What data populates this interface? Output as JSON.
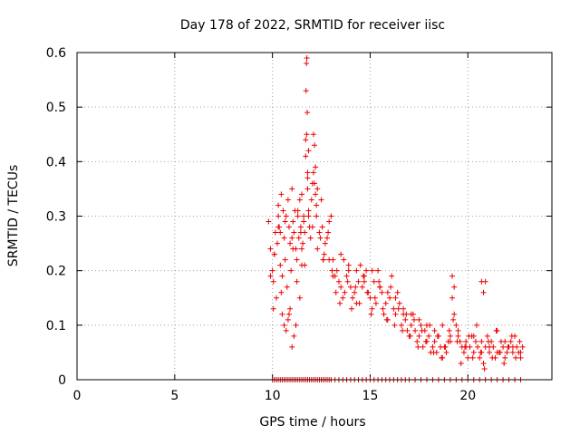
{
  "chart_data": {
    "type": "scatter",
    "title": "Day 178 of 2022, SRMTID for receiver iisc",
    "xlabel": "GPS time / hours",
    "ylabel": "SRMTID / TECUs",
    "xlim": [
      0,
      24.3
    ],
    "ylim": [
      0,
      0.6
    ],
    "xticks": [
      0,
      5,
      10,
      15,
      20
    ],
    "xtick_labels": [
      "0",
      "5",
      "10",
      "15",
      "20"
    ],
    "yticks": [
      0,
      0.1,
      0.2,
      0.3,
      0.4,
      0.5,
      0.6
    ],
    "ytick_labels": [
      "0",
      "0.1",
      "0.2",
      "0.3",
      "0.4",
      "0.5",
      "0.6"
    ],
    "grid": true,
    "marker": "+",
    "color": "#ee0000",
    "series": [
      {
        "name": "SRMTID",
        "x": [
          9.8,
          9.9,
          10.0,
          10.05,
          10.1,
          10.15,
          10.2,
          10.3,
          10.35,
          10.4,
          10.45,
          10.5,
          10.55,
          10.6,
          10.65,
          10.7,
          10.75,
          10.8,
          10.85,
          10.9,
          10.95,
          11.0,
          11.05,
          11.1,
          11.15,
          11.2,
          11.25,
          11.3,
          11.35,
          11.4,
          11.45,
          11.5,
          11.55,
          11.6,
          11.65,
          11.7,
          11.72,
          11.74,
          11.76,
          11.78,
          11.8,
          11.85,
          11.9,
          11.95,
          12.0,
          12.05,
          12.1,
          12.15,
          12.2,
          12.25,
          12.3,
          12.4,
          12.5,
          12.55,
          12.6,
          12.7,
          12.8,
          12.9,
          13.0,
          13.1,
          13.2,
          13.3,
          13.4,
          13.5,
          13.6,
          13.7,
          13.8,
          13.9,
          14.0,
          14.1,
          14.2,
          14.3,
          14.4,
          14.5,
          14.6,
          14.7,
          14.8,
          14.9,
          15.0,
          15.1,
          15.2,
          15.3,
          15.4,
          15.5,
          15.6,
          15.7,
          15.8,
          15.9,
          16.0,
          16.1,
          16.2,
          16.3,
          16.4,
          16.5,
          16.6,
          16.7,
          16.8,
          16.9,
          17.0,
          17.1,
          17.2,
          17.3,
          17.4,
          17.5,
          17.6,
          17.7,
          17.8,
          17.9,
          18.0,
          18.1,
          18.2,
          18.3,
          18.4,
          18.5,
          18.6,
          18.7,
          18.8,
          18.9,
          19.0,
          19.1,
          19.2,
          19.3,
          19.4,
          19.5,
          19.6,
          19.7,
          19.8,
          19.9,
          20.0,
          20.1,
          20.2,
          20.3,
          20.4,
          20.5,
          20.6,
          20.7,
          20.8,
          20.9,
          21.0,
          21.1,
          21.2,
          21.3,
          21.4,
          21.5,
          21.6,
          21.7,
          21.8,
          21.9,
          22.0,
          22.1,
          22.2,
          22.3,
          22.4,
          22.5,
          22.6,
          22.7,
          22.8,
          10.0,
          10.1,
          10.2,
          10.3,
          10.4,
          10.5,
          10.6,
          10.7,
          10.8,
          10.9,
          11.0,
          11.1,
          11.2,
          11.3,
          11.4,
          11.5,
          11.6,
          11.7,
          11.8,
          11.9,
          12.0,
          12.1,
          12.2,
          12.3,
          12.4,
          12.5,
          12.6,
          12.7,
          12.8,
          12.9,
          13.0,
          13.2,
          13.4,
          13.6,
          13.8,
          14.0,
          14.2,
          14.4,
          14.6,
          14.8,
          15.0,
          15.2,
          15.4,
          15.6,
          15.8,
          16.0,
          16.2,
          16.4,
          16.6,
          16.8,
          17.0,
          17.3,
          17.6,
          17.9,
          18.2,
          18.5,
          18.8,
          19.1,
          19.4,
          19.7,
          20.0,
          20.3,
          20.6,
          20.9,
          21.2,
          21.5,
          21.8,
          22.1,
          22.4,
          22.7,
          10.05,
          10.25,
          10.45,
          10.65,
          10.85,
          11.05,
          11.25,
          11.45,
          11.65,
          11.85,
          12.05,
          12.25,
          12.45,
          12.65,
          12.85,
          13.05,
          13.25,
          13.45,
          13.65,
          13.85,
          14.05,
          14.25,
          14.45,
          14.65,
          14.85,
          15.05,
          15.25,
          15.45,
          15.65,
          15.85,
          16.05,
          16.25,
          16.45,
          16.65,
          16.85,
          17.05,
          17.25,
          17.45,
          17.65,
          17.85,
          18.05,
          18.25,
          18.45,
          18.65,
          18.85,
          19.05,
          19.25,
          19.45,
          19.65,
          19.85,
          20.05,
          20.25,
          20.45,
          20.65,
          20.85,
          21.05,
          21.25,
          21.45,
          21.65,
          21.85,
          22.05,
          22.25,
          22.45,
          22.65,
          11.7,
          11.75,
          11.8,
          11.85,
          12.1,
          12.15,
          12.2,
          20.7,
          20.8,
          20.9,
          19.2,
          19.3,
          10.5,
          10.6,
          10.7,
          10.8,
          10.4,
          10.3,
          10.9,
          11.0,
          11.1,
          11.2,
          11.3,
          11.4,
          11.5,
          11.6,
          9.9,
          10.1,
          10.3,
          11.0,
          11.5,
          11.8,
          12.3,
          12.6,
          12.9,
          13.1,
          13.5,
          13.9,
          14.3,
          14.7,
          15.1,
          15.5,
          15.9,
          16.3,
          16.7,
          17.1,
          17.5,
          17.9,
          18.3,
          18.7,
          19.1,
          19.5,
          19.9,
          20.3,
          20.7,
          21.1,
          21.5,
          21.9,
          22.3,
          22.7
        ],
        "y": [
          0.29,
          0.24,
          0.2,
          0.18,
          0.23,
          0.27,
          0.15,
          0.32,
          0.28,
          0.21,
          0.34,
          0.19,
          0.31,
          0.26,
          0.22,
          0.3,
          0.17,
          0.33,
          0.28,
          0.25,
          0.2,
          0.35,
          0.29,
          0.27,
          0.31,
          0.24,
          0.22,
          0.3,
          0.26,
          0.33,
          0.28,
          0.21,
          0.25,
          0.3,
          0.27,
          0.44,
          0.53,
          0.58,
          0.59,
          0.49,
          0.35,
          0.31,
          0.28,
          0.26,
          0.33,
          0.36,
          0.45,
          0.43,
          0.39,
          0.3,
          0.24,
          0.27,
          0.33,
          0.28,
          0.22,
          0.25,
          0.26,
          0.29,
          0.3,
          0.22,
          0.19,
          0.2,
          0.18,
          0.17,
          0.15,
          0.16,
          0.19,
          0.2,
          0.17,
          0.15,
          0.16,
          0.14,
          0.18,
          0.21,
          0.17,
          0.19,
          0.2,
          0.16,
          0.15,
          0.13,
          0.18,
          0.14,
          0.2,
          0.17,
          0.16,
          0.12,
          0.14,
          0.11,
          0.15,
          0.19,
          0.13,
          0.12,
          0.16,
          0.14,
          0.1,
          0.12,
          0.11,
          0.09,
          0.08,
          0.1,
          0.12,
          0.09,
          0.07,
          0.08,
          0.1,
          0.06,
          0.09,
          0.07,
          0.08,
          0.05,
          0.06,
          0.07,
          0.05,
          0.08,
          0.06,
          0.04,
          0.06,
          0.05,
          0.07,
          0.08,
          0.15,
          0.12,
          0.1,
          0.08,
          0.07,
          0.06,
          0.05,
          0.07,
          0.04,
          0.06,
          0.08,
          0.05,
          0.07,
          0.06,
          0.04,
          0.05,
          0.03,
          0.06,
          0.08,
          0.05,
          0.07,
          0.06,
          0.04,
          0.09,
          0.05,
          0.07,
          0.06,
          0.04,
          0.05,
          0.06,
          0.07,
          0.05,
          0.08,
          0.06,
          0.05,
          0.04,
          0.06,
          0.0,
          0.0,
          0.0,
          0.0,
          0.0,
          0.0,
          0.0,
          0.0,
          0.0,
          0.0,
          0.0,
          0.0,
          0.0,
          0.0,
          0.0,
          0.0,
          0.0,
          0.0,
          0.0,
          0.0,
          0.0,
          0.0,
          0.0,
          0.0,
          0.0,
          0.0,
          0.0,
          0.0,
          0.0,
          0.0,
          0.0,
          0.0,
          0.0,
          0.0,
          0.0,
          0.0,
          0.0,
          0.0,
          0.0,
          0.0,
          0.0,
          0.0,
          0.0,
          0.0,
          0.0,
          0.0,
          0.0,
          0.0,
          0.0,
          0.0,
          0.0,
          0.0,
          0.0,
          0.0,
          0.0,
          0.0,
          0.0,
          0.0,
          0.0,
          0.0,
          0.0,
          0.0,
          0.0,
          0.0,
          0.0,
          0.0,
          0.0,
          0.0,
          0.0,
          0.0,
          0.13,
          0.25,
          0.16,
          0.29,
          0.12,
          0.24,
          0.18,
          0.27,
          0.21,
          0.3,
          0.28,
          0.32,
          0.26,
          0.23,
          0.27,
          0.2,
          0.16,
          0.14,
          0.22,
          0.18,
          0.13,
          0.17,
          0.14,
          0.19,
          0.16,
          0.12,
          0.15,
          0.18,
          0.13,
          0.11,
          0.17,
          0.1,
          0.13,
          0.09,
          0.12,
          0.08,
          0.11,
          0.06,
          0.09,
          0.07,
          0.1,
          0.05,
          0.08,
          0.04,
          0.06,
          0.09,
          0.11,
          0.07,
          0.03,
          0.06,
          0.08,
          0.04,
          0.1,
          0.05,
          0.02,
          0.07,
          0.04,
          0.09,
          0.05,
          0.03,
          0.06,
          0.08,
          0.04,
          0.07,
          0.41,
          0.45,
          0.37,
          0.42,
          0.38,
          0.36,
          0.34,
          0.18,
          0.16,
          0.18,
          0.19,
          0.17,
          0.12,
          0.1,
          0.09,
          0.11,
          0.27,
          0.3,
          0.13,
          0.06,
          0.08,
          0.1,
          0.31,
          0.15,
          0.34,
          0.29,
          0.19,
          0.23,
          0.28,
          0.26,
          0.24,
          0.38,
          0.35,
          0.22,
          0.22,
          0.19,
          0.23,
          0.21,
          0.2,
          0.18,
          0.2,
          0.17,
          0.16,
          0.15,
          0.13,
          0.12,
          0.11,
          0.1,
          0.09,
          0.1,
          0.07,
          0.09,
          0.06,
          0.08,
          0.07,
          0.06,
          0.05,
          0.07,
          0.06,
          0.05
        ]
      }
    ]
  }
}
